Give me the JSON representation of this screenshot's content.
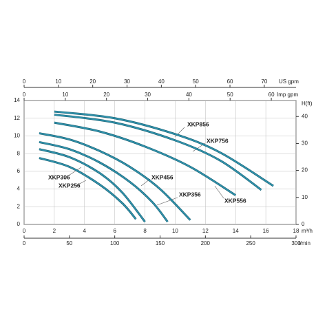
{
  "chart_data": {
    "type": "line",
    "x_label": "m³/h",
    "xlim": [
      0,
      18
    ],
    "xticks": [
      0,
      2,
      4,
      6,
      8,
      10,
      12,
      14,
      16,
      18
    ],
    "ylim": [
      0,
      14
    ],
    "yticks": [
      0,
      2,
      4,
      6,
      8,
      10,
      12,
      14
    ],
    "y2_label": "H(ft)",
    "y2lim": [
      0,
      45.93
    ],
    "y2ticks": [
      0,
      10,
      20,
      30,
      40
    ],
    "lmin_axis": {
      "label": "l/min",
      "lim": [
        0,
        300
      ],
      "ticks": [
        0,
        50,
        100,
        150,
        200,
        250,
        300
      ]
    },
    "us_gpm_axis": {
      "label": "US gpm",
      "lim": [
        0,
        79.25
      ],
      "ticks": [
        0,
        10,
        20,
        30,
        40,
        50,
        60,
        70
      ]
    },
    "imp_gpm_axis": {
      "label": "Imp gpm",
      "lim": [
        0,
        66
      ],
      "ticks": [
        0,
        10,
        20,
        30,
        40,
        50,
        60
      ]
    },
    "grid": true,
    "series": [
      {
        "name": "XKP856",
        "color": "#2f93ad",
        "x": [
          2,
          6,
          10,
          13,
          16.5
        ],
        "values": [
          12.75,
          12,
          10.2,
          8.1,
          4.35
        ]
      },
      {
        "name": "XKP756",
        "color": "#2f93ad",
        "x": [
          2,
          6,
          10,
          13,
          15.7
        ],
        "values": [
          12.4,
          11.5,
          9.5,
          7.2,
          3.9
        ]
      },
      {
        "name": "XKP556",
        "color": "#2f93ad",
        "x": [
          2,
          5,
          8,
          11,
          14
        ],
        "values": [
          11.5,
          10.5,
          8.8,
          6.5,
          3.3
        ]
      },
      {
        "name": "XKP456",
        "color": "#2f93ad",
        "x": [
          1,
          3,
          5,
          7,
          9,
          11
        ],
        "values": [
          10.3,
          9.6,
          8.3,
          6.5,
          4,
          0.5
        ]
      },
      {
        "name": "XKP356",
        "color": "#2f93ad",
        "x": [
          1,
          3,
          5,
          7,
          8.5,
          9.5
        ],
        "values": [
          9.3,
          8.5,
          7,
          4.8,
          2.5,
          0.3
        ]
      },
      {
        "name": "XKP306",
        "color": "#2f93ad",
        "x": [
          1,
          3,
          5,
          6.5,
          8
        ],
        "values": [
          8.5,
          7.6,
          5.8,
          3.6,
          0.3
        ]
      },
      {
        "name": "XKP256",
        "color": "#2f93ad",
        "x": [
          1,
          3,
          5,
          6.5,
          7.4
        ],
        "values": [
          7.5,
          6.5,
          4.5,
          2.4,
          0.6
        ]
      }
    ]
  }
}
